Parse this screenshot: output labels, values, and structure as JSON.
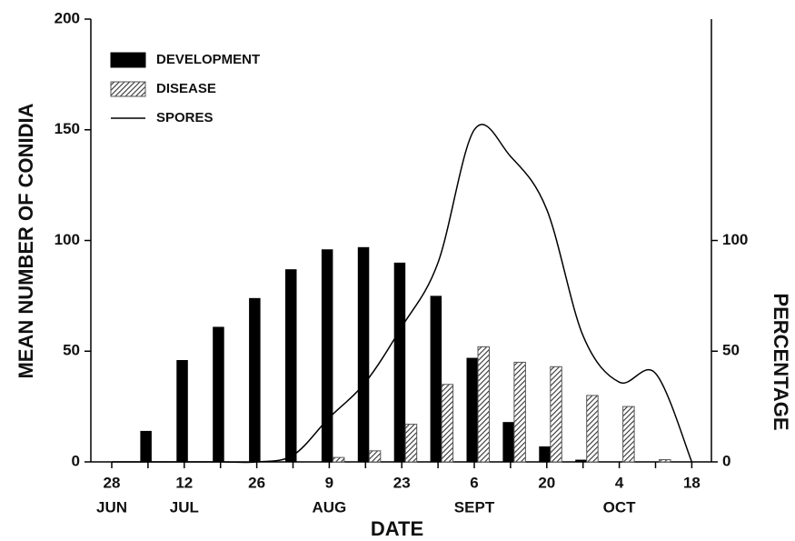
{
  "chart_data": {
    "type": "bar",
    "xlabel": "DATE",
    "ylabel": "MEAN NUMBER OF CONIDIA",
    "y2label": "PERCENTAGE",
    "categories": [
      "28",
      null,
      "12",
      null,
      "26",
      null,
      "9",
      null,
      "23",
      null,
      "6",
      null,
      "20",
      null,
      "4",
      null,
      "18"
    ],
    "months": [
      "JUN",
      null,
      "JUL",
      null,
      null,
      null,
      "AUG",
      null,
      null,
      null,
      "SEPT",
      null,
      null,
      null,
      "OCT",
      null,
      null
    ],
    "series": [
      {
        "name": "DEVELOPMENT",
        "type": "bar",
        "color": "#000000",
        "values": [
          0,
          14,
          46,
          61,
          74,
          87,
          96,
          97,
          90,
          75,
          47,
          18,
          7,
          1,
          0,
          0,
          0
        ]
      },
      {
        "name": "DISEASE",
        "type": "bar",
        "color": "#555555",
        "hatch": true,
        "values": [
          0,
          0,
          0,
          0,
          0,
          0,
          2,
          5,
          17,
          35,
          52,
          45,
          43,
          30,
          25,
          1,
          0
        ]
      },
      {
        "name": "SPORES",
        "type": "line",
        "axis": "y2",
        "color": "#000000",
        "values": [
          0,
          0,
          0,
          0,
          0,
          3,
          20,
          36,
          61,
          90,
          150,
          138,
          114,
          57,
          36,
          40,
          0
        ]
      }
    ],
    "ylim": [
      0,
      200
    ],
    "yticks": [
      0,
      50,
      100,
      150,
      200
    ],
    "y2lim": [
      0,
      200
    ],
    "y2ticks": [
      0,
      50,
      100
    ],
    "legend": "upper-left",
    "grid": false
  }
}
